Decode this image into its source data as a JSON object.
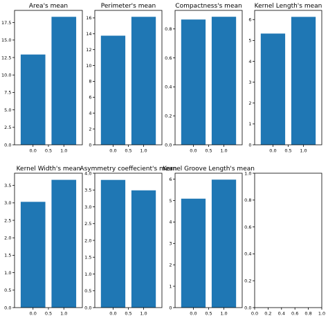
{
  "chart_data": [
    {
      "type": "bar",
      "title": "Area's mean",
      "x": [
        0.0,
        1.0
      ],
      "values": [
        12.93,
        18.33
      ],
      "xticks": [
        "0.0",
        "0.5",
        "1.0"
      ],
      "xtick_values": [
        0.0,
        0.5,
        1.0
      ],
      "yticks": [
        "0.0",
        "2.5",
        "5.0",
        "7.5",
        "10.0",
        "12.5",
        "15.0",
        "17.5"
      ],
      "ytick_values": [
        0,
        2.5,
        5,
        7.5,
        10,
        12.5,
        15,
        17.5
      ],
      "xlim": [
        -0.6,
        1.6
      ],
      "ylim": [
        0,
        19.25
      ],
      "color": "#1f77b4"
    },
    {
      "type": "bar",
      "title": "Perimeter's mean",
      "x": [
        0.0,
        1.0
      ],
      "values": [
        13.76,
        16.14
      ],
      "xticks": [
        "0.0",
        "0.5",
        "1.0"
      ],
      "xtick_values": [
        0.0,
        0.5,
        1.0
      ],
      "yticks": [
        "0",
        "2",
        "4",
        "6",
        "8",
        "10",
        "12",
        "14",
        "16"
      ],
      "ytick_values": [
        0,
        2,
        4,
        6,
        8,
        10,
        12,
        14,
        16
      ],
      "xlim": [
        -0.6,
        1.6
      ],
      "ylim": [
        0,
        16.95
      ],
      "color": "#1f77b4"
    },
    {
      "type": "bar",
      "title": "Compactness's mean",
      "x": [
        0.0,
        1.0
      ],
      "values": [
        0.865,
        0.884
      ],
      "xticks": [
        "0.0",
        "0.5",
        "1.0"
      ],
      "xtick_values": [
        0.0,
        0.5,
        1.0
      ],
      "yticks": [
        "0.0",
        "0.2",
        "0.4",
        "0.6",
        "0.8"
      ],
      "ytick_values": [
        0,
        0.2,
        0.4,
        0.6,
        0.8
      ],
      "xlim": [
        -0.6,
        1.6
      ],
      "ylim": [
        0,
        0.928
      ],
      "color": "#1f77b4"
    },
    {
      "type": "bar",
      "title": "Kernel Length's mean",
      "x": [
        0.0,
        1.0
      ],
      "values": [
        5.33,
        6.13
      ],
      "xticks": [
        "0.0",
        "0.5",
        "1.0"
      ],
      "xtick_values": [
        0.0,
        0.5,
        1.0
      ],
      "yticks": [
        "0",
        "1",
        "2",
        "3",
        "4",
        "5",
        "6"
      ],
      "ytick_values": [
        0,
        1,
        2,
        3,
        4,
        5,
        6
      ],
      "xlim": [
        -0.6,
        1.6
      ],
      "ylim": [
        0,
        6.44
      ],
      "color": "#1f77b4"
    },
    {
      "type": "bar",
      "title": "Kernel Width's mean",
      "x": [
        0.0,
        1.0
      ],
      "values": [
        3.03,
        3.66
      ],
      "xticks": [
        "0.0",
        "0.5",
        "1.0"
      ],
      "xtick_values": [
        0.0,
        0.5,
        1.0
      ],
      "yticks": [
        "0.0",
        "0.5",
        "1.0",
        "1.5",
        "2.0",
        "2.5",
        "3.0",
        "3.5"
      ],
      "ytick_values": [
        0,
        0.5,
        1,
        1.5,
        2,
        2.5,
        3,
        3.5
      ],
      "xlim": [
        -0.6,
        1.6
      ],
      "ylim": [
        0,
        3.85
      ],
      "color": "#1f77b4"
    },
    {
      "type": "bar",
      "title": "Asymmetry coeffecient's mean",
      "x": [
        0.0,
        1.0
      ],
      "values": [
        3.8,
        3.49
      ],
      "xticks": [
        "0.0",
        "0.5",
        "1.0"
      ],
      "xtick_values": [
        0.0,
        0.5,
        1.0
      ],
      "yticks": [
        "0.0",
        "0.5",
        "1.0",
        "1.5",
        "2.0",
        "2.5",
        "3.0",
        "3.5",
        "4.0"
      ],
      "ytick_values": [
        0,
        0.5,
        1,
        1.5,
        2,
        2.5,
        3,
        3.5,
        4
      ],
      "xlim": [
        -0.6,
        1.6
      ],
      "ylim": [
        0,
        4.0
      ],
      "color": "#1f77b4"
    },
    {
      "type": "bar",
      "title": "Kernel Groove Length's mean",
      "x": [
        0.0,
        1.0
      ],
      "values": [
        5.09,
        5.98
      ],
      "xticks": [
        "0.0",
        "0.5",
        "1.0"
      ],
      "xtick_values": [
        0.0,
        0.5,
        1.0
      ],
      "yticks": [
        "0",
        "1",
        "2",
        "3",
        "4",
        "5",
        "6"
      ],
      "ytick_values": [
        0,
        1,
        2,
        3,
        4,
        5,
        6
      ],
      "xlim": [
        -0.6,
        1.6
      ],
      "ylim": [
        0,
        6.28
      ],
      "color": "#1f77b4"
    },
    {
      "type": "bar",
      "title": "",
      "x": [],
      "values": [],
      "xticks": [
        "0.0",
        "0.2",
        "0.4",
        "0.6",
        "0.8",
        "1.0"
      ],
      "xtick_values": [
        0,
        0.2,
        0.4,
        0.6,
        0.8,
        1.0
      ],
      "yticks": [
        "0.0",
        "0.2",
        "0.4",
        "0.6",
        "0.8",
        "1.0"
      ],
      "ytick_values": [
        0,
        0.2,
        0.4,
        0.6,
        0.8,
        1.0
      ],
      "xlim": [
        0,
        1
      ],
      "ylim": [
        0,
        1
      ],
      "color": "#1f77b4"
    }
  ]
}
